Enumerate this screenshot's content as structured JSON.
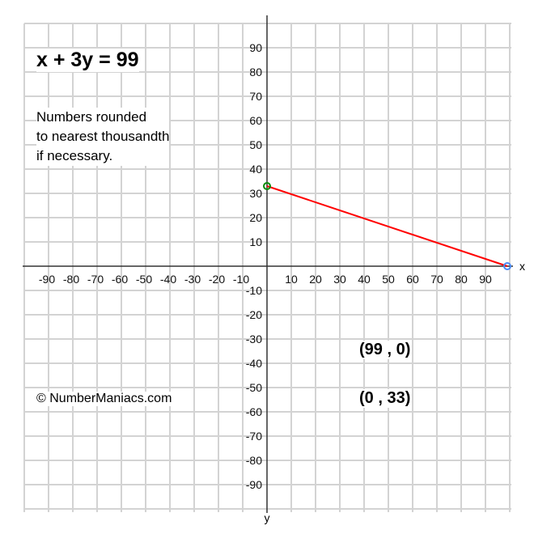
{
  "chart_data": {
    "type": "line",
    "title": "x + 3y = 99",
    "note": [
      "Numbers rounded",
      "to nearest thousandth",
      "if necessary."
    ],
    "copyright": "© NumberManiacs.com",
    "xlabel": "x",
    "ylabel": "y",
    "xlim": [
      -100,
      100
    ],
    "ylim": [
      -100,
      100
    ],
    "grid": true,
    "x_ticks": [
      -90,
      -80,
      -70,
      -60,
      -50,
      -40,
      -30,
      -20,
      -10,
      10,
      20,
      30,
      40,
      50,
      60,
      70,
      80,
      90
    ],
    "y_ticks": [
      90,
      80,
      70,
      60,
      50,
      40,
      30,
      20,
      10,
      -10,
      -20,
      -30,
      -40,
      -50,
      -60,
      -70,
      -80,
      -90
    ],
    "series": [
      {
        "points": [
          [
            0,
            33
          ],
          [
            99,
            0
          ]
        ],
        "color": "#ff0000"
      }
    ],
    "intercepts": [
      {
        "label": "(99 , 0)",
        "x": 99,
        "y": 0,
        "color": "#4a8af4"
      },
      {
        "label": "(0 , 33)",
        "x": 0,
        "y": 33,
        "color": "#0a8a0a"
      }
    ]
  }
}
